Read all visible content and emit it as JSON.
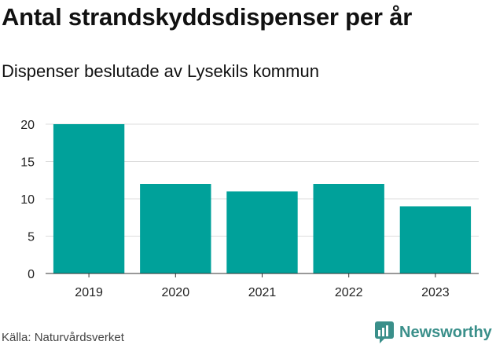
{
  "title": "Antal strandskyddsdispenser per år",
  "subtitle": "Dispenser beslutade av Lysekils kommun",
  "source": "Källa: Naturvårdsverket",
  "brand": "Newsworthy",
  "colors": {
    "bar": "#00a19a",
    "grid": "#dddddd",
    "axis": "#333333",
    "brand": "#3a8f8a"
  },
  "chart_data": {
    "type": "bar",
    "categories": [
      "2019",
      "2020",
      "2021",
      "2022",
      "2023"
    ],
    "values": [
      20,
      12,
      11,
      12,
      9
    ],
    "ylim": [
      0,
      20
    ],
    "yticks": [
      0,
      5,
      10,
      15,
      20
    ],
    "xlabel": "",
    "ylabel": "",
    "grid": true
  }
}
